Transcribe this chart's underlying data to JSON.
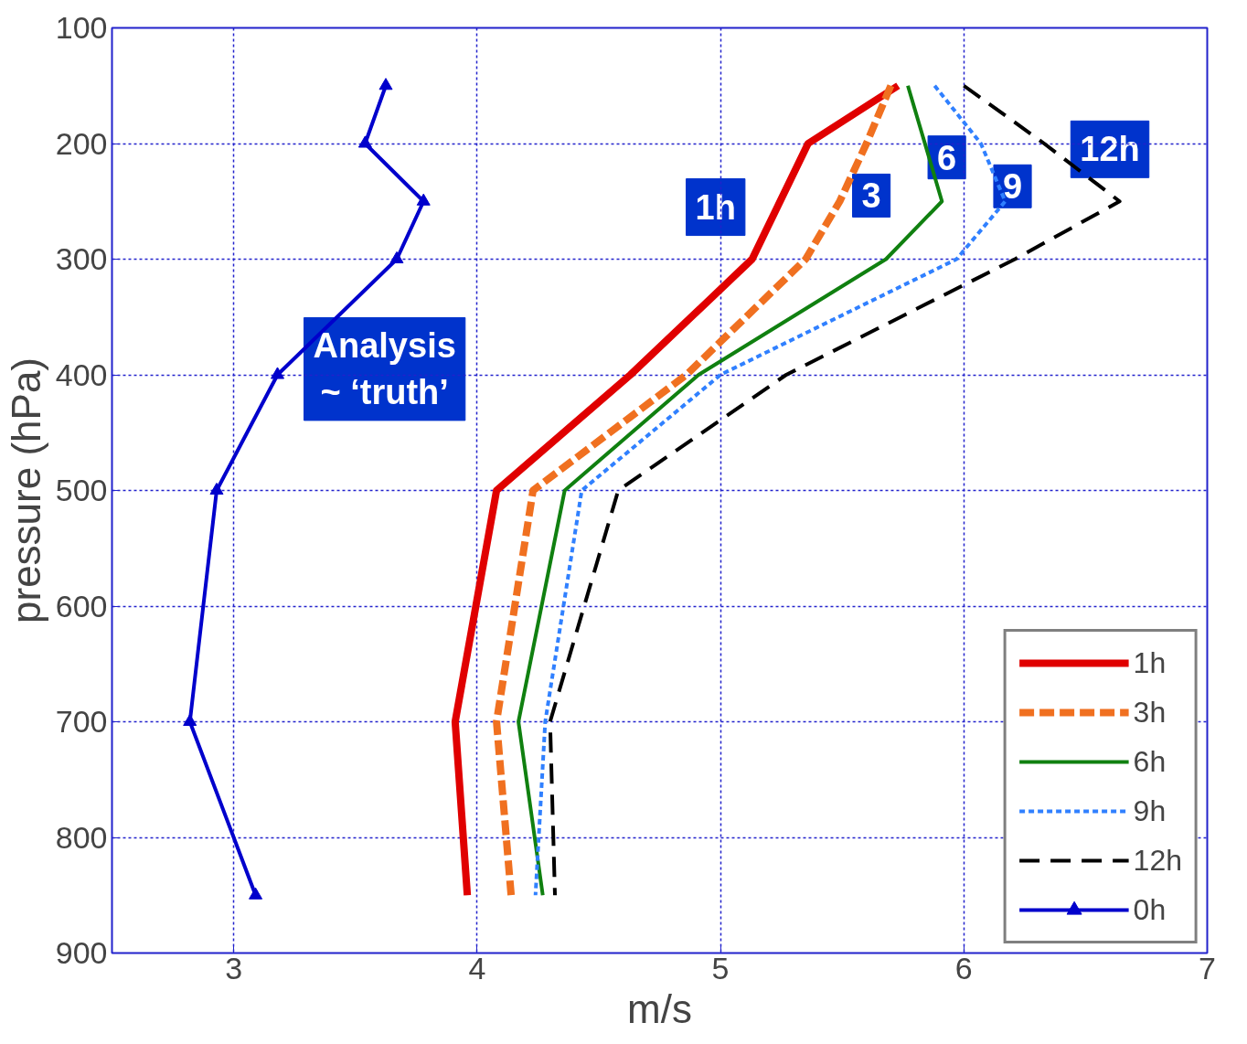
{
  "chart_data": {
    "type": "line",
    "xlabel": "m/s",
    "ylabel": "pressure (hPa)",
    "xlim": [
      2.5,
      7
    ],
    "xticks": [
      3,
      4,
      5,
      6,
      7
    ],
    "ylim": [
      900,
      100
    ],
    "yticks": [
      100,
      200,
      300,
      400,
      500,
      600,
      700,
      800,
      900
    ],
    "grid": true,
    "legend": "bottom right",
    "series": [
      {
        "name": "1h",
        "color": "#e00000",
        "line_style": "solid",
        "marker": "none",
        "x": [
          5.73,
          5.36,
          5.13,
          4.63,
          4.08,
          3.91,
          3.96
        ],
        "values": [
          150,
          200,
          300,
          400,
          500,
          700,
          850
        ]
      },
      {
        "name": "3h",
        "color": "#f07020",
        "line_style": "dashed",
        "marker": "none",
        "x": [
          5.7,
          5.6,
          5.49,
          5.35,
          4.86,
          4.23,
          4.08,
          4.14
        ],
        "values": [
          150,
          200,
          250,
          300,
          400,
          500,
          700,
          850
        ]
      },
      {
        "name": "6h",
        "color": "#108010",
        "line_style": "solid",
        "marker": "none",
        "x": [
          5.77,
          5.91,
          5.68,
          4.91,
          4.36,
          4.17,
          4.27
        ],
        "values": [
          150,
          250,
          300,
          400,
          500,
          700,
          850
        ]
      },
      {
        "name": "9h",
        "color": "#3080ff",
        "line_style": "dotted",
        "marker": "none",
        "x": [
          5.88,
          6.07,
          6.17,
          5.97,
          5.0,
          4.43,
          4.28,
          4.24
        ],
        "values": [
          150,
          200,
          250,
          300,
          400,
          500,
          700,
          850
        ]
      },
      {
        "name": "12h",
        "color": "#000000",
        "line_style": "dashed",
        "marker": "none",
        "x": [
          6.0,
          6.33,
          6.64,
          6.21,
          5.27,
          4.58,
          4.3,
          4.32
        ],
        "values": [
          150,
          200,
          250,
          300,
          400,
          500,
          700,
          850
        ]
      },
      {
        "name": "0h",
        "color": "#0000cc",
        "line_style": "solid",
        "marker": "triangle",
        "x": [
          3.625,
          3.54,
          3.78,
          3.67,
          3.18,
          2.93,
          2.82,
          3.09
        ],
        "values": [
          150,
          200,
          250,
          300,
          400,
          500,
          700,
          850
        ]
      }
    ],
    "annotations": [
      "1h",
      "3",
      "6",
      "9",
      "12h",
      "Analysis\n~ ‘truth’"
    ]
  }
}
